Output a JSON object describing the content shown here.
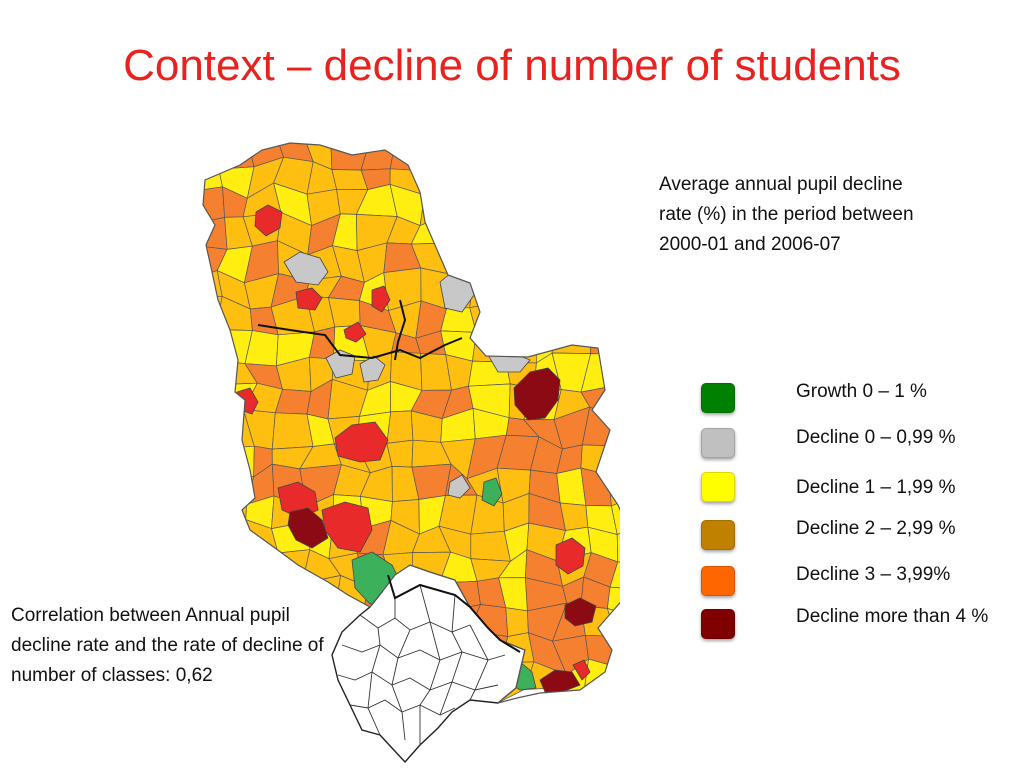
{
  "slide": {
    "title": "Context – decline of number of students"
  },
  "map": {
    "caption": "Average annual pupil decline rate (%) in the period between 2000-01 and 2006-07",
    "legend": [
      {
        "label": "Growth 0 – 1 %",
        "color": "#008000"
      },
      {
        "label": "Decline 0 – 0,99 %",
        "color": "#c0c0c0"
      },
      {
        "label": "Decline 1 – 1,99 %",
        "color": "#ffff00"
      },
      {
        "label": "Decline 2 – 2,99 %",
        "color": "#c08000"
      },
      {
        "label": "Decline 3 – 3,99%",
        "color": "#ff6600"
      },
      {
        "label": "Decline more than 4 %",
        "color": "#800000"
      }
    ],
    "region_colors": {
      "growth": "#3cb05a",
      "gray": "#c8c8c8",
      "yellow": "#ffee10",
      "amber": "#ffbf10",
      "orange": "#f58030",
      "red": "#e82a2a",
      "darkred": "#8b0a14",
      "nodata": "#ffffff"
    }
  },
  "correlation": {
    "text": "Correlation between Annual pupil decline rate and the rate of decline of number of classes: 0,62"
  }
}
